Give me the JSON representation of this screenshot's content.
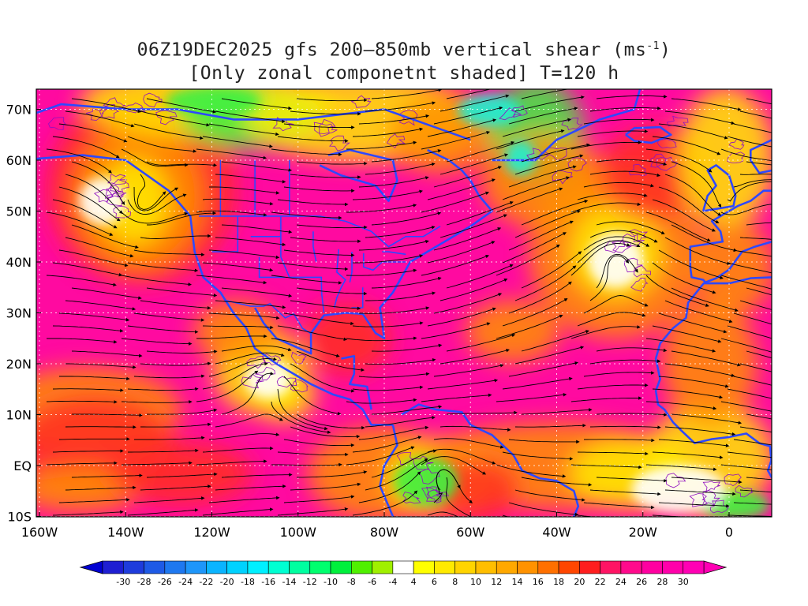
{
  "title": {
    "line1_main": "06Z19DEC2025 gfs 200–850mb vertical shear (ms",
    "line1_sup": "-1",
    "line1_end": ")",
    "line2": "[Only zonal componetnt shaded] T=120 h"
  },
  "map": {
    "lat_labels": [
      "70N",
      "60N",
      "50N",
      "40N",
      "30N",
      "20N",
      "10N",
      "EQ",
      "10S"
    ],
    "lon_labels": [
      "160W",
      "140W",
      "120W",
      "100W",
      "80W",
      "60W",
      "40W",
      "20W",
      "0"
    ]
  },
  "colorbar": {
    "labels": [
      "-30",
      "-28",
      "-26",
      "-24",
      "-22",
      "-20",
      "-18",
      "-16",
      "-14",
      "-12",
      "-10",
      "-8",
      "-6",
      "-4",
      "4",
      "6",
      "8",
      "10",
      "12",
      "14",
      "16",
      "18",
      "20",
      "22",
      "24",
      "26",
      "28",
      "30"
    ],
    "colors": [
      "#1e1ed2",
      "#1e3cdc",
      "#1e5ae6",
      "#1e78f0",
      "#1e96fa",
      "#0ab4ff",
      "#00d2ff",
      "#00f0ff",
      "#00ffd2",
      "#00ffa0",
      "#00ff6e",
      "#00f03c",
      "#50f000",
      "#a0f000",
      "#ffffff",
      "#ffff00",
      "#ffea00",
      "#ffd400",
      "#ffbe00",
      "#ffa800",
      "#ff9200",
      "#ff7000",
      "#ff4600",
      "#ff1e1e",
      "#ff1464",
      "#ff0a8c",
      "#ff00a0",
      "#ff00aa",
      "#ff00b4"
    ],
    "low_color": "#0000d2",
    "high_color": "#ff00b4"
  },
  "palette": {
    "strong_shear": "#ff0aa0",
    "red": "#ff3020",
    "orange": "#ff9000",
    "yellow": "#ffea00",
    "green": "#40f040",
    "cyan": "#20f0d0",
    "coast": "#2e48ff",
    "streamline": "#000000",
    "contour": "#9010c0"
  }
}
